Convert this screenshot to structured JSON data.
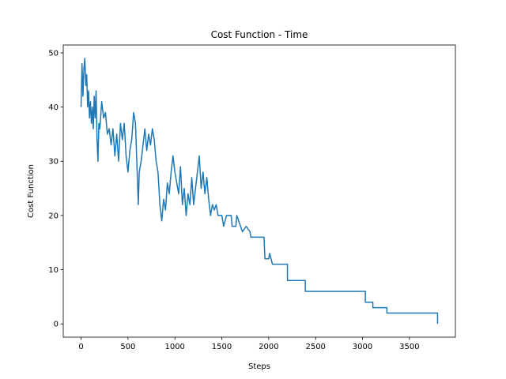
{
  "chart_data": {
    "type": "line",
    "title": "Cost Function - Time",
    "x_label": "Steps",
    "y_label": "Cost Function",
    "x": [
      0,
      5,
      10,
      20,
      30,
      40,
      50,
      60,
      70,
      80,
      90,
      100,
      110,
      120,
      130,
      140,
      150,
      160,
      170,
      180,
      190,
      200,
      220,
      240,
      260,
      280,
      300,
      320,
      340,
      360,
      380,
      400,
      420,
      440,
      460,
      480,
      500,
      520,
      540,
      560,
      580,
      600,
      610,
      620,
      640,
      660,
      680,
      700,
      720,
      740,
      760,
      780,
      800,
      820,
      840,
      860,
      880,
      900,
      920,
      940,
      960,
      980,
      1000,
      1020,
      1040,
      1060,
      1080,
      1100,
      1120,
      1140,
      1160,
      1180,
      1200,
      1220,
      1240,
      1260,
      1280,
      1300,
      1320,
      1340,
      1360,
      1380,
      1400,
      1420,
      1440,
      1460,
      1500,
      1520,
      1550,
      1600,
      1610,
      1650,
      1660,
      1700,
      1720,
      1760,
      1800,
      1810,
      1900,
      1950,
      1960,
      2000,
      2010,
      2040,
      2100,
      2200,
      2200,
      2390,
      2390,
      3030,
      3030,
      3110,
      3110,
      3260,
      3260,
      3800,
      3800
    ],
    "series": [
      {
        "name": "Cost Function",
        "color": "#1f77b4",
        "values": [
          40,
          44,
          48,
          42,
          47,
          49,
          44,
          46,
          40,
          43,
          38,
          41,
          37,
          40,
          36,
          42,
          38,
          43,
          34,
          30,
          37,
          36,
          41,
          38,
          39,
          35,
          36,
          33,
          36,
          31,
          35,
          30,
          37,
          34,
          37,
          31,
          28,
          32,
          34,
          39,
          37,
          27,
          22,
          28,
          30,
          33,
          36,
          32,
          35,
          33,
          36,
          34,
          30,
          28,
          22,
          19,
          23,
          21,
          26,
          24,
          28,
          31,
          28,
          26,
          24,
          29,
          22,
          25,
          20,
          24,
          22,
          27,
          22,
          25,
          28,
          31,
          25,
          28,
          24,
          27,
          23,
          20,
          22,
          21,
          22,
          20,
          20,
          18,
          20,
          20,
          18,
          18,
          20,
          18,
          17,
          18,
          17,
          16,
          16,
          16,
          12,
          12,
          13,
          11,
          11,
          11,
          8,
          8,
          6,
          6,
          4,
          4,
          3,
          3,
          2,
          2,
          0
        ]
      }
    ],
    "xlim": [
      -190,
      3990
    ],
    "ylim": [
      -2.45,
      51.45
    ],
    "xticks": [
      0,
      500,
      1000,
      1500,
      2000,
      2500,
      3000,
      3500
    ],
    "yticks": [
      0,
      10,
      20,
      30,
      40,
      50
    ]
  }
}
